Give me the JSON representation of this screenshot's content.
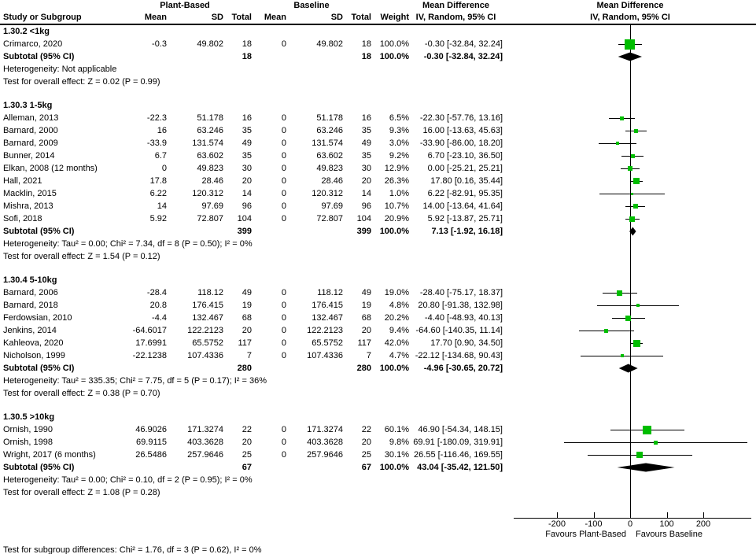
{
  "header": {
    "col_study": "Study or Subgroup",
    "group1": "Plant-Based",
    "group2": "Baseline",
    "mean": "Mean",
    "sd": "SD",
    "total": "Total",
    "weight": "Weight",
    "md_title": "Mean Difference",
    "md_sub": "IV, Random, 95% CI"
  },
  "chart_data": {
    "type": "forest",
    "effect_measure": "Mean Difference",
    "model": "IV, Random, 95% CI",
    "colors": {
      "square": "#00BD00",
      "diamond": "#000000",
      "line": "#000000"
    },
    "axis": {
      "tick_values": [
        -200,
        -100,
        0,
        100,
        200
      ],
      "tick_labels": [
        "-200",
        "-100",
        "0",
        "100",
        "200"
      ],
      "xlim": [
        -318,
        331
      ],
      "favours_left": "Favours Plant-Based",
      "favours_right": "Favours Baseline"
    },
    "subtotal_label": "Subtotal (95% CI)",
    "subgroups": [
      {
        "title": "1.30.2 <1kg",
        "studies": [
          {
            "name": "Crimarco, 2020",
            "m1": "-0.3",
            "sd1": "49.802",
            "n1": "18",
            "m2": "0",
            "sd2": "49.802",
            "n2": "18",
            "w": "100.0%",
            "est": "-0.30 [-32.84, 32.24]",
            "md": -0.3,
            "lo": -32.84,
            "hi": 32.24,
            "wt": 100.0
          }
        ],
        "subtotal": {
          "n1": "18",
          "n2": "18",
          "w": "100.0%",
          "est": "-0.30 [-32.84, 32.24]",
          "md": -0.3,
          "lo": -32.84,
          "hi": 32.24
        },
        "heterogeneity": "Heterogeneity: Not applicable",
        "overall_test": "Test for overall effect: Z = 0.02 (P = 0.99)"
      },
      {
        "title": "1.30.3 1-5kg",
        "studies": [
          {
            "name": "Alleman, 2013",
            "m1": "-22.3",
            "sd1": "51.178",
            "n1": "16",
            "m2": "0",
            "sd2": "51.178",
            "n2": "16",
            "w": "6.5%",
            "est": "-22.30 [-57.76, 13.16]",
            "md": -22.3,
            "lo": -57.76,
            "hi": 13.16,
            "wt": 6.5
          },
          {
            "name": "Barnard, 2000",
            "m1": "16",
            "sd1": "63.246",
            "n1": "35",
            "m2": "0",
            "sd2": "63.246",
            "n2": "35",
            "w": "9.3%",
            "est": "16.00 [-13.63, 45.63]",
            "md": 16,
            "lo": -13.63,
            "hi": 45.63,
            "wt": 9.3
          },
          {
            "name": "Barnard, 2009",
            "m1": "-33.9",
            "sd1": "131.574",
            "n1": "49",
            "m2": "0",
            "sd2": "131.574",
            "n2": "49",
            "w": "3.0%",
            "est": "-33.90 [-86.00, 18.20]",
            "md": -33.9,
            "lo": -86.0,
            "hi": 18.2,
            "wt": 3.0
          },
          {
            "name": "Bunner, 2014",
            "m1": "6.7",
            "sd1": "63.602",
            "n1": "35",
            "m2": "0",
            "sd2": "63.602",
            "n2": "35",
            "w": "9.2%",
            "est": "6.70 [-23.10, 36.50]",
            "md": 6.7,
            "lo": -23.1,
            "hi": 36.5,
            "wt": 9.2
          },
          {
            "name": "Elkan, 2008 (12 months)",
            "m1": "0",
            "sd1": "49.823",
            "n1": "30",
            "m2": "0",
            "sd2": "49.823",
            "n2": "30",
            "w": "12.9%",
            "est": "0.00 [-25.21, 25.21]",
            "md": 0,
            "lo": -25.21,
            "hi": 25.21,
            "wt": 12.9
          },
          {
            "name": "Hall, 2021",
            "m1": "17.8",
            "sd1": "28.46",
            "n1": "20",
            "m2": "0",
            "sd2": "28.46",
            "n2": "20",
            "w": "26.3%",
            "est": "17.80 [0.16, 35.44]",
            "md": 17.8,
            "lo": 0.16,
            "hi": 35.44,
            "wt": 26.3
          },
          {
            "name": "Macklin, 2015",
            "m1": "6.22",
            "sd1": "120.312",
            "n1": "14",
            "m2": "0",
            "sd2": "120.312",
            "n2": "14",
            "w": "1.0%",
            "est": "6.22 [-82.91, 95.35]",
            "md": 6.22,
            "lo": -82.91,
            "hi": 95.35,
            "wt": 1.0
          },
          {
            "name": "Mishra, 2013",
            "m1": "14",
            "sd1": "97.69",
            "n1": "96",
            "m2": "0",
            "sd2": "97.69",
            "n2": "96",
            "w": "10.7%",
            "est": "14.00 [-13.64, 41.64]",
            "md": 14,
            "lo": -13.64,
            "hi": 41.64,
            "wt": 10.7
          },
          {
            "name": "Sofi, 2018",
            "m1": "5.92",
            "sd1": "72.807",
            "n1": "104",
            "m2": "0",
            "sd2": "72.807",
            "n2": "104",
            "w": "20.9%",
            "est": "5.92 [-13.87, 25.71]",
            "md": 5.92,
            "lo": -13.87,
            "hi": 25.71,
            "wt": 20.9
          }
        ],
        "subtotal": {
          "n1": "399",
          "n2": "399",
          "w": "100.0%",
          "est": "7.13 [-1.92, 16.18]",
          "md": 7.13,
          "lo": -1.92,
          "hi": 16.18
        },
        "heterogeneity": "Heterogeneity: Tau² = 0.00; Chi² = 7.34, df = 8 (P = 0.50); I² = 0%",
        "overall_test": "Test for overall effect: Z = 1.54 (P = 0.12)"
      },
      {
        "title": "1.30.4 5-10kg",
        "studies": [
          {
            "name": "Barnard, 2006",
            "m1": "-28.4",
            "sd1": "118.12",
            "n1": "49",
            "m2": "0",
            "sd2": "118.12",
            "n2": "49",
            "w": "19.0%",
            "est": "-28.40 [-75.17, 18.37]",
            "md": -28.4,
            "lo": -75.17,
            "hi": 18.37,
            "wt": 19.0
          },
          {
            "name": "Barnard, 2018",
            "m1": "20.8",
            "sd1": "176.415",
            "n1": "19",
            "m2": "0",
            "sd2": "176.415",
            "n2": "19",
            "w": "4.8%",
            "est": "20.80 [-91.38, 132.98]",
            "md": 20.8,
            "lo": -91.38,
            "hi": 132.98,
            "wt": 4.8
          },
          {
            "name": "Ferdowsian, 2010",
            "m1": "-4.4",
            "sd1": "132.467",
            "n1": "68",
            "m2": "0",
            "sd2": "132.467",
            "n2": "68",
            "w": "20.2%",
            "est": "-4.40 [-48.93, 40.13]",
            "md": -4.4,
            "lo": -48.93,
            "hi": 40.13,
            "wt": 20.2
          },
          {
            "name": "Jenkins, 2014",
            "m1": "-64.6017",
            "sd1": "122.2123",
            "n1": "20",
            "m2": "0",
            "sd2": "122.2123",
            "n2": "20",
            "w": "9.4%",
            "est": "-64.60 [-140.35, 11.14]",
            "md": -64.6,
            "lo": -140.35,
            "hi": 11.14,
            "wt": 9.4
          },
          {
            "name": "Kahleova, 2020",
            "m1": "17.6991",
            "sd1": "65.5752",
            "n1": "117",
            "m2": "0",
            "sd2": "65.5752",
            "n2": "117",
            "w": "42.0%",
            "est": "17.70 [0.90, 34.50]",
            "md": 17.7,
            "lo": 0.9,
            "hi": 34.5,
            "wt": 42.0
          },
          {
            "name": "Nicholson, 1999",
            "m1": "-22.1238",
            "sd1": "107.4336",
            "n1": "7",
            "m2": "0",
            "sd2": "107.4336",
            "n2": "7",
            "w": "4.7%",
            "est": "-22.12 [-134.68, 90.43]",
            "md": -22.12,
            "lo": -134.68,
            "hi": 90.43,
            "wt": 4.7
          }
        ],
        "subtotal": {
          "n1": "280",
          "n2": "280",
          "w": "100.0%",
          "est": "-4.96 [-30.65, 20.72]",
          "md": -4.96,
          "lo": -30.65,
          "hi": 20.72
        },
        "heterogeneity": "Heterogeneity: Tau² = 335.35; Chi² = 7.75, df = 5 (P = 0.17); I² = 36%",
        "overall_test": "Test for overall effect: Z = 0.38 (P = 0.70)"
      },
      {
        "title": "1.30.5 >10kg",
        "studies": [
          {
            "name": "Ornish, 1990",
            "m1": "46.9026",
            "sd1": "171.3274",
            "n1": "22",
            "m2": "0",
            "sd2": "171.3274",
            "n2": "22",
            "w": "60.1%",
            "est": "46.90 [-54.34, 148.15]",
            "md": 46.9,
            "lo": -54.34,
            "hi": 148.15,
            "wt": 60.1
          },
          {
            "name": "Ornish, 1998",
            "m1": "69.9115",
            "sd1": "403.3628",
            "n1": "20",
            "m2": "0",
            "sd2": "403.3628",
            "n2": "20",
            "w": "9.8%",
            "est": "69.91 [-180.09, 319.91]",
            "md": 69.91,
            "lo": -180.09,
            "hi": 319.91,
            "wt": 9.8
          },
          {
            "name": "Wright, 2017 (6 months)",
            "m1": "26.5486",
            "sd1": "257.9646",
            "n1": "25",
            "m2": "0",
            "sd2": "257.9646",
            "n2": "25",
            "w": "30.1%",
            "est": "26.55 [-116.46, 169.55]",
            "md": 26.55,
            "lo": -116.46,
            "hi": 169.55,
            "wt": 30.1
          }
        ],
        "subtotal": {
          "n1": "67",
          "n2": "67",
          "w": "100.0%",
          "est": "43.04 [-35.42, 121.50]",
          "md": 43.04,
          "lo": -35.42,
          "hi": 121.5
        },
        "heterogeneity": "Heterogeneity: Tau² = 0.00; Chi² = 0.10, df = 2 (P = 0.95); I² = 0%",
        "overall_test": "Test for overall effect: Z = 1.08 (P = 0.28)"
      }
    ],
    "footer": "Test for subgroup differences: Chi² = 1.76, df = 3 (P = 0.62), I² = 0%"
  }
}
